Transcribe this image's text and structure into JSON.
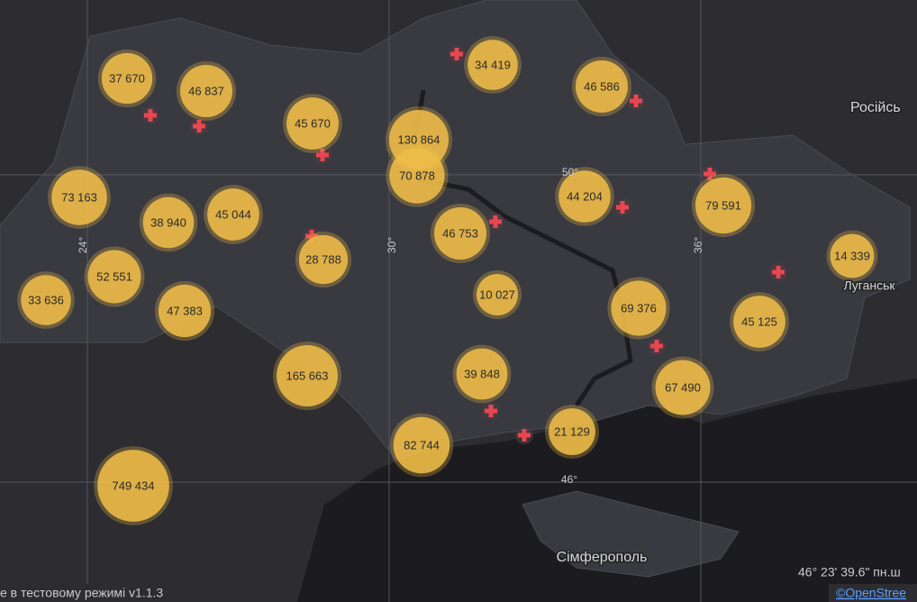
{
  "map": {
    "clusters": [
      {
        "value": 37670,
        "label": "37 670"
      },
      {
        "value": 46837,
        "label": "46 837"
      },
      {
        "value": 45670,
        "label": "45 670"
      },
      {
        "value": 130864,
        "label": "130 864"
      },
      {
        "value": 70878,
        "label": "70 878"
      },
      {
        "value": 34419,
        "label": "34 419"
      },
      {
        "value": 46586,
        "label": "46 586"
      },
      {
        "value": 73163,
        "label": "73 163"
      },
      {
        "value": 38940,
        "label": "38 940"
      },
      {
        "value": 45044,
        "label": "45 044"
      },
      {
        "value": 46753,
        "label": "46 753"
      },
      {
        "value": 44204,
        "label": "44 204"
      },
      {
        "value": 79591,
        "label": "79 591"
      },
      {
        "value": 28788,
        "label": "28 788"
      },
      {
        "value": 52551,
        "label": "52 551"
      },
      {
        "value": 33636,
        "label": "33 636"
      },
      {
        "value": 47383,
        "label": "47 383"
      },
      {
        "value": 10027,
        "label": "10 027"
      },
      {
        "value": 69376,
        "label": "69 376"
      },
      {
        "value": 45125,
        "label": "45 125"
      },
      {
        "value": 14339,
        "label": "14 339"
      },
      {
        "value": 165663,
        "label": "165 663"
      },
      {
        "value": 39848,
        "label": "39 848"
      },
      {
        "value": 67490,
        "label": "67 490"
      },
      {
        "value": 21129,
        "label": "21 129"
      },
      {
        "value": 82744,
        "label": "82 744"
      },
      {
        "value": 749434,
        "label": "749 434"
      }
    ],
    "places": [
      "Російсь",
      "Луганськ",
      "Сімферополь"
    ],
    "graticule": [
      "24°",
      "30°",
      "36°",
      "50°",
      "46°"
    ],
    "coordinates": "46° 23' 39.6\" пн.ш",
    "attribution": "©OpenStree",
    "status": "е в тестовому режимі v1.1.3"
  }
}
